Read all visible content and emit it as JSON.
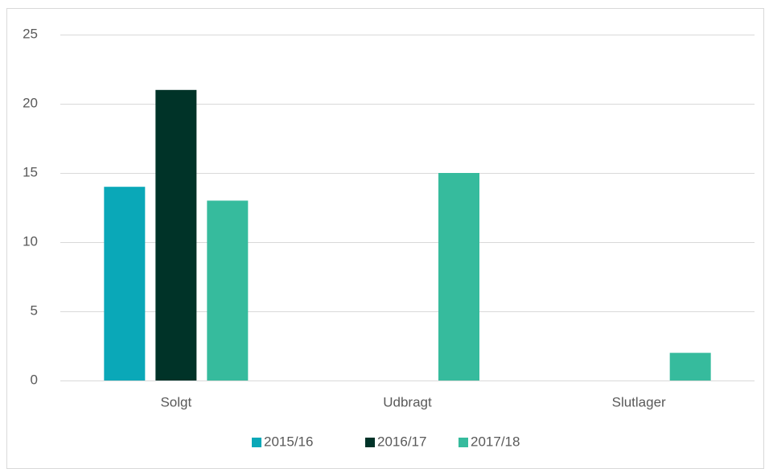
{
  "chart_data": {
    "type": "bar",
    "categories": [
      "Solgt",
      "Udbragt",
      "Slutlager"
    ],
    "series": [
      {
        "name": "2015/16",
        "color": "#0aa8b8",
        "values": [
          14,
          null,
          null
        ]
      },
      {
        "name": "2016/17",
        "color": "#003328",
        "values": [
          21,
          null,
          null
        ]
      },
      {
        "name": "2017/18",
        "color": "#36bb9d",
        "values": [
          13,
          15,
          2
        ]
      }
    ],
    "ylim": [
      0,
      25
    ],
    "yticks": [
      0,
      5,
      10,
      15,
      20,
      25
    ],
    "grid": true,
    "legend": "bottom"
  }
}
